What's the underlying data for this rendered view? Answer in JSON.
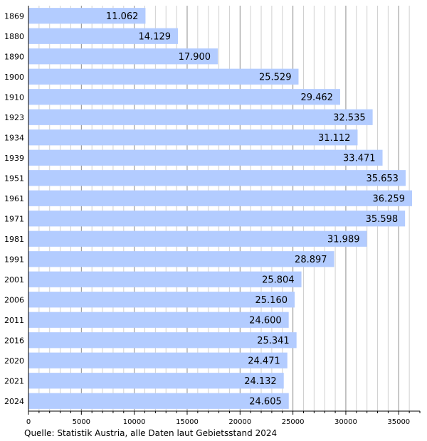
{
  "chart_data": {
    "type": "bar",
    "orientation": "horizontal",
    "categories": [
      "1869",
      "1880",
      "1890",
      "1900",
      "1910",
      "1923",
      "1934",
      "1939",
      "1951",
      "1961",
      "1971",
      "1981",
      "1991",
      "2001",
      "2006",
      "2011",
      "2016",
      "2020",
      "2021",
      "2024"
    ],
    "values": [
      11062,
      14129,
      17900,
      25529,
      29462,
      32535,
      31112,
      33471,
      35653,
      36259,
      35598,
      31989,
      28897,
      25804,
      25160,
      24600,
      25341,
      24471,
      24132,
      24605
    ],
    "value_labels": [
      "11.062",
      "14.129",
      "17.900",
      "25.529",
      "29.462",
      "32.535",
      "31.112",
      "33.471",
      "35.653",
      "36.259",
      "35.598",
      "31.989",
      "28.897",
      "25.804",
      "25.160",
      "24.600",
      "25.341",
      "24.471",
      "24.132",
      "24.605"
    ],
    "xlim": [
      0,
      37000
    ],
    "x_ticks": [
      0,
      5000,
      10000,
      15000,
      20000,
      25000,
      30000,
      35000
    ],
    "x_minor_step": 1000,
    "grid": true,
    "bar_color": "#b3ccff",
    "major_grid_color": "#8c8c8c",
    "minor_grid_color": "#d0d0d0"
  },
  "source_note": "Quelle: Statistik Austria, alle Daten laut Gebietsstand 2024"
}
